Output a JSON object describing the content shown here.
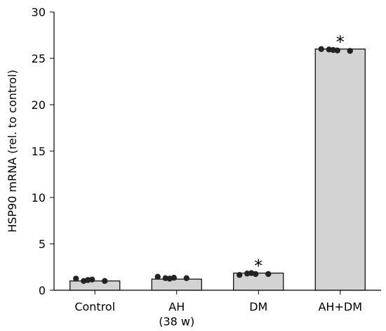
{
  "chart_data": {
    "type": "bar",
    "ylabel": "HSP90 mRNA (rel. to control)",
    "xlabel": "",
    "ylim": [
      0,
      30
    ],
    "yticks": [
      0,
      5,
      10,
      15,
      20,
      25,
      30
    ],
    "grid": false,
    "categories": [
      {
        "lines": [
          "Control"
        ]
      },
      {
        "lines": [
          "AH",
          "(38 w)"
        ]
      },
      {
        "lines": [
          "DM"
        ]
      },
      {
        "lines": [
          "AH+DM"
        ]
      }
    ],
    "values": [
      1.0,
      1.2,
      1.85,
      26.0
    ],
    "points": [
      [
        1.25,
        1.0,
        1.1,
        1.15,
        1.0
      ],
      [
        1.45,
        1.3,
        1.25,
        1.35,
        1.3
      ],
      [
        1.65,
        1.8,
        1.85,
        1.75,
        1.75
      ],
      [
        26.0,
        25.95,
        25.9,
        25.85,
        25.8
      ]
    ],
    "significance": [
      "",
      "",
      "*",
      "*"
    ],
    "colors": {
      "bar_fill": "#d3d3d3",
      "bar_edge": "#000000",
      "point": "#222222"
    }
  }
}
